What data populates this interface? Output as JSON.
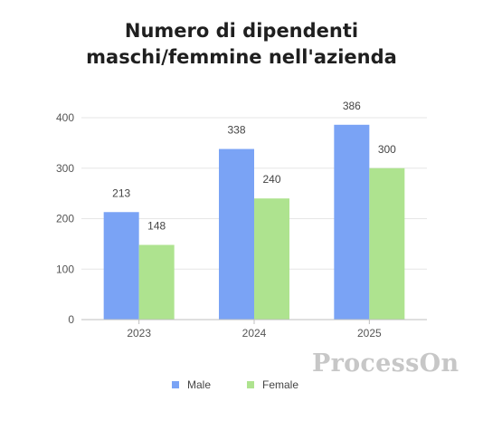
{
  "watermark": "ProcessOn",
  "chart_data": {
    "type": "bar",
    "title_lines": [
      "Numero di dipendenti",
      "maschi/femmine nell'azienda"
    ],
    "categories": [
      "2023",
      "2024",
      "2025"
    ],
    "series": [
      {
        "name": "Male",
        "values": [
          213,
          338,
          386
        ],
        "color": "#7aa3f5"
      },
      {
        "name": "Female",
        "values": [
          148,
          240,
          300
        ],
        "color": "#aee38f"
      }
    ],
    "y_ticks": [
      0,
      100,
      200,
      300,
      400
    ],
    "ylim": [
      0,
      400
    ],
    "grid": true,
    "legend_position": "bottom-center",
    "data_labels": true
  }
}
